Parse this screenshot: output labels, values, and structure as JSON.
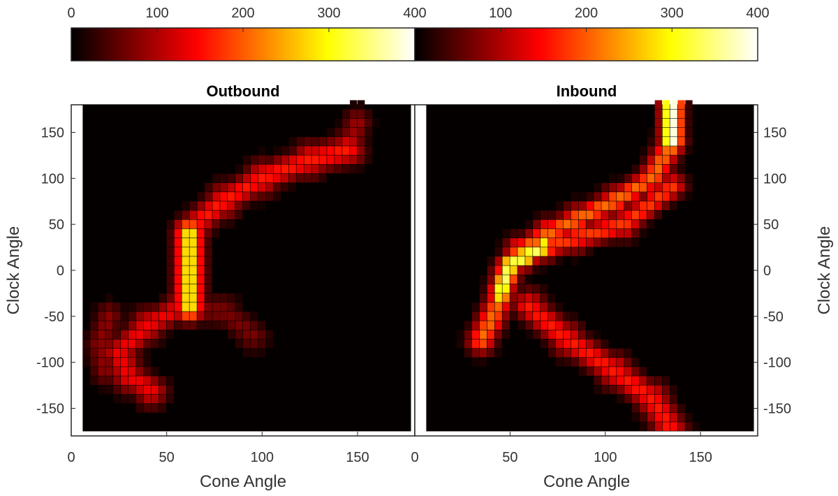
{
  "chart_data": {
    "type": "heatmap",
    "colorbar": {
      "colormap": "hot",
      "range": [
        0,
        400
      ],
      "left_ticks": [
        "0",
        "100",
        "200",
        "300",
        "400"
      ],
      "right_ticks": [
        "100",
        "200",
        "300",
        "400"
      ]
    },
    "x_range": [
      0,
      180
    ],
    "y_range": [
      -180,
      180
    ],
    "bin_size": [
      4,
      10
    ],
    "xlabel": "Cone Angle",
    "ylabel": "Clock Angle",
    "left_panel_x_ticks": [
      "0",
      "50",
      "100",
      "150"
    ],
    "right_panel_x_ticks": [
      "0",
      "50",
      "100",
      "150"
    ],
    "y_ticks": [
      "150",
      "100",
      "50",
      "0",
      "-50",
      "-100",
      "-150"
    ],
    "panels": [
      {
        "title": "Outbound",
        "ridges": [
          {
            "points": [
              [
                62,
                40
              ],
              [
                62,
                -40
              ]
            ],
            "peak": 300,
            "spread": 5
          },
          {
            "points": [
              [
                58,
                -40
              ],
              [
                40,
                -60
              ],
              [
                25,
                -90
              ],
              [
                30,
                -115
              ],
              [
                42,
                -130
              ]
            ],
            "peak": 140,
            "spread": 6
          },
          {
            "points": [
              [
                20,
                -50
              ],
              [
                15,
                -80
              ],
              [
                18,
                -110
              ]
            ],
            "peak": 80,
            "spread": 5
          },
          {
            "points": [
              [
                65,
                50
              ],
              [
                80,
                75
              ],
              [
                100,
                100
              ],
              [
                125,
                120
              ],
              [
                145,
                130
              ]
            ],
            "peak": 160,
            "spread": 6
          },
          {
            "points": [
              [
                145,
                130
              ],
              [
                150,
                160
              ]
            ],
            "peak": 90,
            "spread": 5
          },
          {
            "points": [
              [
                60,
                -40
              ],
              [
                80,
                -45
              ],
              [
                95,
                -70
              ]
            ],
            "peak": 70,
            "spread": 6
          }
        ]
      },
      {
        "title": "Inbound",
        "ridges": [
          {
            "points": [
              [
                135,
                180
              ],
              [
                135,
                140
              ]
            ],
            "peak": 400,
            "spread": 4
          },
          {
            "points": [
              [
                135,
                140
              ],
              [
                125,
                100
              ],
              [
                105,
                75
              ],
              [
                85,
                55
              ],
              [
                70,
                40
              ],
              [
                55,
                20
              ],
              [
                48,
                -5
              ],
              [
                45,
                -30
              ],
              [
                40,
                -55
              ],
              [
                35,
                -75
              ]
            ],
            "peak": 210,
            "spread": 5
          },
          {
            "points": [
              [
                45,
                -25
              ],
              [
                50,
                5
              ],
              [
                58,
                15
              ],
              [
                68,
                25
              ]
            ],
            "peak": 340,
            "spread": 4
          },
          {
            "points": [
              [
                68,
                25
              ],
              [
                85,
                35
              ],
              [
                110,
                50
              ],
              [
                135,
                90
              ]
            ],
            "peak": 180,
            "spread": 5
          },
          {
            "points": [
              [
                60,
                -40
              ],
              [
                80,
                -75
              ],
              [
                105,
                -110
              ],
              [
                125,
                -140
              ],
              [
                135,
                -175
              ]
            ],
            "peak": 160,
            "spread": 6
          }
        ]
      }
    ]
  }
}
